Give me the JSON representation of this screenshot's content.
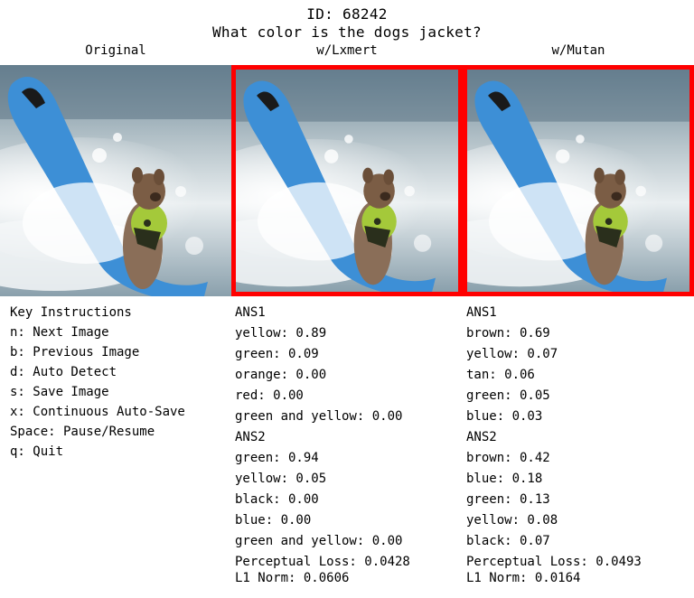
{
  "header": {
    "id_line": "ID: 68242",
    "question": "What color is the dogs jacket?"
  },
  "columns": {
    "original": "Original",
    "lxmert": "w/Lxmert",
    "mutan": "w/Mutan"
  },
  "instructions": {
    "title": "Key Instructions",
    "items": [
      "n: Next Image",
      "b: Previous Image",
      "d: Auto Detect",
      "s: Save Image",
      "x: Continuous Auto-Save",
      "Space: Pause/Resume",
      "q: Quit"
    ]
  },
  "lxmert": {
    "ans1_title": "ANS1",
    "ans1": [
      "yellow: 0.89",
      "green: 0.09",
      "orange: 0.00",
      "red: 0.00",
      "green and yellow: 0.00"
    ],
    "ans2_title": "ANS2",
    "ans2": [
      "green: 0.94",
      "yellow: 0.05",
      "black: 0.00",
      "blue: 0.00",
      "green and yellow: 0.00"
    ],
    "perceptual_loss": "Perceptual Loss: 0.0428",
    "l1_norm": "L1 Norm: 0.0606"
  },
  "mutan": {
    "ans1_title": "ANS1",
    "ans1": [
      "brown: 0.69",
      "yellow: 0.07",
      "tan: 0.06",
      "green: 0.05",
      "blue: 0.03"
    ],
    "ans2_title": "ANS2",
    "ans2": [
      "brown: 0.42",
      "blue: 0.18",
      "green: 0.13",
      "yellow: 0.08",
      "black: 0.07"
    ],
    "perceptual_loss": "Perceptual Loss: 0.0493",
    "l1_norm": "L1 Norm: 0.0164"
  }
}
